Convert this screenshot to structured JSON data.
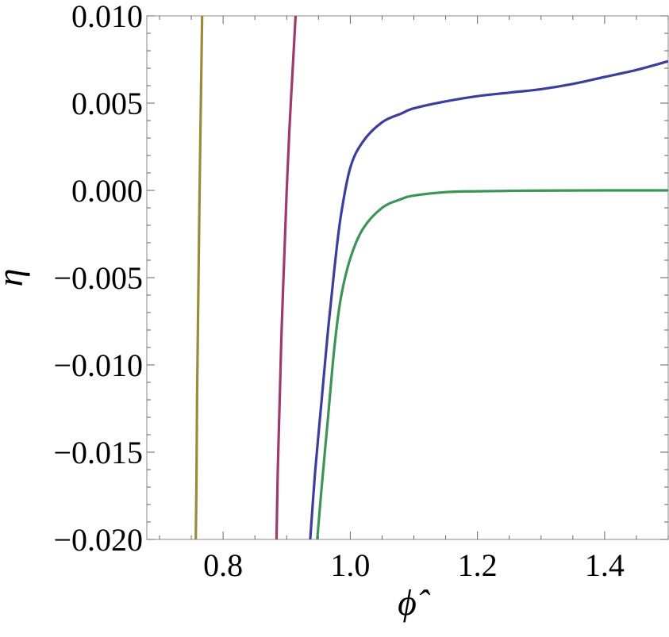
{
  "chart_data": {
    "type": "line",
    "title": "",
    "xlabel": "ϕ̂",
    "ylabel": "η",
    "xlim": [
      0.68,
      1.5
    ],
    "ylim": [
      -0.02,
      0.01
    ],
    "xticks": [
      0.8,
      1.0,
      1.2,
      1.4
    ],
    "xtick_labels": [
      "0.8",
      "1.0",
      "1.2",
      "1.4"
    ],
    "yticks": [
      0.01,
      0.005,
      0.0,
      -0.005,
      -0.01,
      -0.015,
      -0.02
    ],
    "ytick_labels": [
      "0.010",
      "0.005",
      "0.000",
      "−0.005",
      "−0.010",
      "−0.015",
      "−0.020"
    ],
    "grid": false,
    "series": [
      {
        "color": "#9a8a3a",
        "points": [
          [
            0.757,
            -0.02
          ],
          [
            0.758,
            -0.017
          ],
          [
            0.759,
            -0.012
          ],
          [
            0.761,
            -0.006
          ],
          [
            0.763,
            0.0
          ],
          [
            0.765,
            0.005
          ],
          [
            0.767,
            0.01
          ]
        ]
      },
      {
        "color": "#9c3b6c",
        "points": [
          [
            0.884,
            -0.02
          ],
          [
            0.886,
            -0.016
          ],
          [
            0.889,
            -0.012
          ],
          [
            0.892,
            -0.008
          ],
          [
            0.896,
            -0.004
          ],
          [
            0.9,
            0.0
          ],
          [
            0.905,
            0.004
          ],
          [
            0.911,
            0.008
          ],
          [
            0.914,
            0.01
          ]
        ]
      },
      {
        "color": "#3d3d9e",
        "points": [
          [
            0.937,
            -0.02
          ],
          [
            0.945,
            -0.016
          ],
          [
            0.955,
            -0.012
          ],
          [
            0.965,
            -0.008
          ],
          [
            0.975,
            -0.0045
          ],
          [
            0.985,
            -0.0015
          ],
          [
            1.0,
            0.0013
          ],
          [
            1.02,
            0.0028
          ],
          [
            1.05,
            0.0039
          ],
          [
            1.08,
            0.0044
          ],
          [
            1.1,
            0.0047
          ],
          [
            1.15,
            0.0051
          ],
          [
            1.2,
            0.0054
          ],
          [
            1.25,
            0.0056
          ],
          [
            1.3,
            0.0058
          ],
          [
            1.35,
            0.0061
          ],
          [
            1.4,
            0.0065
          ],
          [
            1.45,
            0.0069
          ],
          [
            1.5,
            0.0074
          ]
        ]
      },
      {
        "color": "#3b9555",
        "points": [
          [
            0.948,
            -0.02
          ],
          [
            0.955,
            -0.017
          ],
          [
            0.965,
            -0.013
          ],
          [
            0.975,
            -0.009
          ],
          [
            0.985,
            -0.0062
          ],
          [
            1.0,
            -0.0039
          ],
          [
            1.02,
            -0.0022
          ],
          [
            1.05,
            -0.001
          ],
          [
            1.08,
            -0.0005
          ],
          [
            1.1,
            -0.0003
          ],
          [
            1.15,
            -0.0001
          ],
          [
            1.2,
            -5e-05
          ],
          [
            1.3,
            -1e-05
          ],
          [
            1.4,
            0.0
          ],
          [
            1.5,
            0.0
          ]
        ]
      }
    ]
  }
}
